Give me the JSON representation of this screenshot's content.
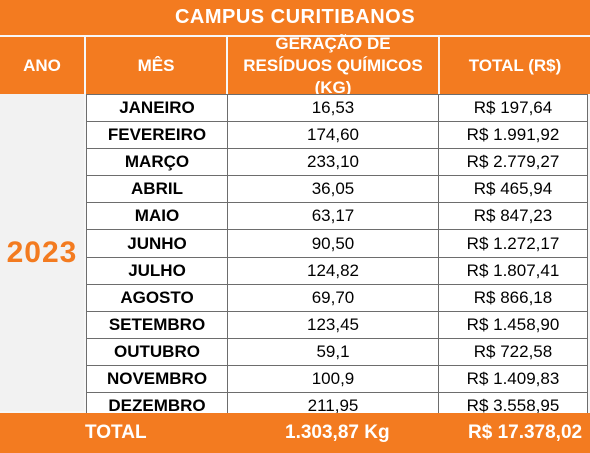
{
  "title": "CAMPUS CURITIBANOS",
  "headers": {
    "ano": "ANO",
    "mes": "MÊS",
    "geracao_line1": "GERAÇÃO DE",
    "geracao_line2": "RESÍDUOS QUÍMICOS (KG)",
    "total": "TOTAL (R$)"
  },
  "year": "2023",
  "rows": [
    {
      "mes": "JANEIRO",
      "geracao": "16,53",
      "total": "R$ 197,64"
    },
    {
      "mes": "FEVEREIRO",
      "geracao": "174,60",
      "total": "R$ 1.991,92"
    },
    {
      "mes": "MARÇO",
      "geracao": "233,10",
      "total": "R$ 2.779,27"
    },
    {
      "mes": "ABRIL",
      "geracao": "36,05",
      "total": "R$ 465,94"
    },
    {
      "mes": "MAIO",
      "geracao": "63,17",
      "total": "R$ 847,23"
    },
    {
      "mes": "JUNHO",
      "geracao": "90,50",
      "total": "R$ 1.272,17"
    },
    {
      "mes": "JULHO",
      "geracao": "124,82",
      "total": "R$ 1.807,41"
    },
    {
      "mes": "AGOSTO",
      "geracao": "69,70",
      "total": "R$ 866,18"
    },
    {
      "mes": "SETEMBRO",
      "geracao": "123,45",
      "total": "R$ 1.458,90"
    },
    {
      "mes": "OUTUBRO",
      "geracao": "59,1",
      "total": "R$ 722,58"
    },
    {
      "mes": "NOVEMBRO",
      "geracao": "100,9",
      "total": "R$ 1.409,83"
    },
    {
      "mes": "DEZEMBRO",
      "geracao": "211,95",
      "total": "R$ 3.558,95"
    }
  ],
  "totals": {
    "label": "TOTAL",
    "geracao": "1.303,87 Kg",
    "valor": "R$ 17.378,02"
  },
  "colors": {
    "accent": "#f37b20",
    "month_bg": "#d9d9d9",
    "year_bg": "#f2f2f2"
  }
}
